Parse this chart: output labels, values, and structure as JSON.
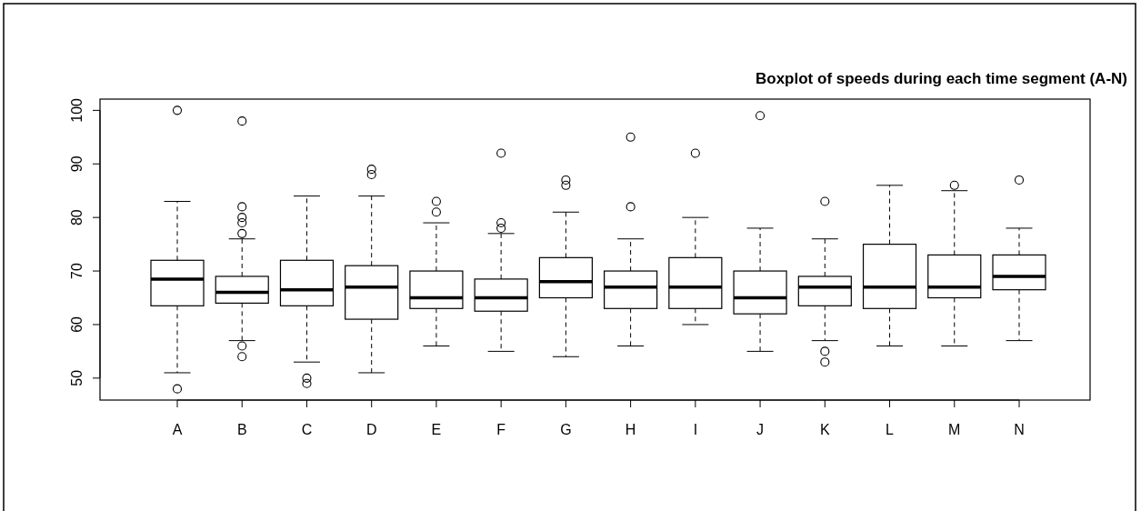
{
  "chart_data": {
    "type": "box",
    "title": "Boxplot of speeds during each time segment (A-N)",
    "categories": [
      "A",
      "B",
      "C",
      "D",
      "E",
      "F",
      "G",
      "H",
      "I",
      "J",
      "K",
      "L",
      "M",
      "N"
    ],
    "boxes": [
      {
        "low": 51,
        "q1": 63.5,
        "median": 68.5,
        "q3": 72,
        "high": 83,
        "outliers": [
          100,
          48
        ]
      },
      {
        "low": 57,
        "q1": 64,
        "median": 66,
        "q3": 69,
        "high": 76,
        "outliers": [
          98,
          82,
          80,
          79,
          77,
          56,
          54
        ]
      },
      {
        "low": 53,
        "q1": 63.5,
        "median": 66.5,
        "q3": 72,
        "high": 84,
        "outliers": [
          50,
          49
        ]
      },
      {
        "low": 51,
        "q1": 61,
        "median": 67,
        "q3": 71,
        "high": 84,
        "outliers": [
          89,
          88
        ]
      },
      {
        "low": 56,
        "q1": 63,
        "median": 65,
        "q3": 70,
        "high": 79,
        "outliers": [
          83,
          81
        ]
      },
      {
        "low": 55,
        "q1": 62.5,
        "median": 65,
        "q3": 68.5,
        "high": 77,
        "outliers": [
          92,
          79,
          78
        ]
      },
      {
        "low": 54,
        "q1": 65,
        "median": 68,
        "q3": 72.5,
        "high": 81,
        "outliers": [
          87,
          86
        ]
      },
      {
        "low": 56,
        "q1": 63,
        "median": 67,
        "q3": 70,
        "high": 76,
        "outliers": [
          95,
          82
        ]
      },
      {
        "low": 60,
        "q1": 63,
        "median": 67,
        "q3": 72.5,
        "high": 80,
        "outliers": [
          92
        ]
      },
      {
        "low": 55,
        "q1": 62,
        "median": 65,
        "q3": 70,
        "high": 78,
        "outliers": [
          99
        ]
      },
      {
        "low": 57,
        "q1": 63.5,
        "median": 67,
        "q3": 69,
        "high": 76,
        "outliers": [
          83,
          55,
          53
        ]
      },
      {
        "low": 56,
        "q1": 63,
        "median": 67,
        "q3": 75,
        "high": 86
      },
      {
        "low": 56,
        "q1": 65,
        "median": 67,
        "q3": 73,
        "high": 85,
        "outliers": [
          86
        ]
      },
      {
        "low": 57,
        "q1": 66.5,
        "median": 69,
        "q3": 73,
        "high": 78,
        "outliers": [
          87
        ]
      }
    ],
    "ylim": [
      45.9,
      102.1
    ],
    "yticks": [
      50,
      60,
      70,
      80,
      90,
      100
    ],
    "grid": false
  }
}
